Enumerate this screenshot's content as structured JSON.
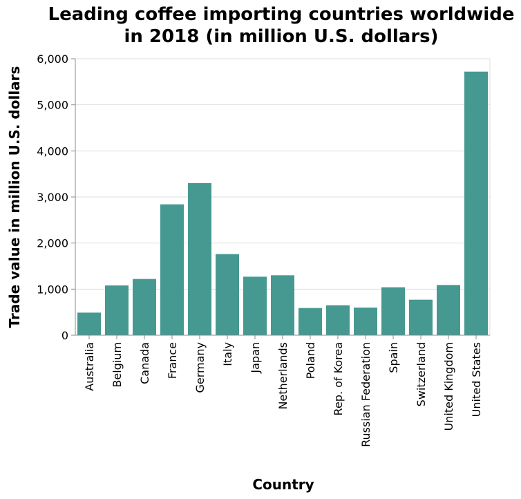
{
  "chart_data": {
    "type": "bar",
    "title_lines": [
      "Leading coffee importing countries worldwide",
      "in 2018 (in million U.S. dollars)"
    ],
    "xlabel": "Country",
    "ylabel": "Trade value in million U.S. dollars",
    "ylim": [
      0,
      6000
    ],
    "yticks": [
      0,
      1000,
      2000,
      3000,
      4000,
      5000,
      6000
    ],
    "ytick_labels": [
      "0",
      "1,000",
      "2,000",
      "3,000",
      "4,000",
      "5,000",
      "6,000"
    ],
    "grid": true,
    "bar_color": "#469990",
    "categories": [
      "Australia",
      "Belgium",
      "Canada",
      "France",
      "Germany",
      "Italy",
      "Japan",
      "Netherlands",
      "Poland",
      "Rep. of Korea",
      "Russian Federation",
      "Spain",
      "Switzerland",
      "United Kingdom",
      "United States"
    ],
    "values": [
      490,
      1080,
      1220,
      2840,
      3300,
      1760,
      1270,
      1300,
      590,
      650,
      600,
      1040,
      770,
      1090,
      5720
    ]
  }
}
